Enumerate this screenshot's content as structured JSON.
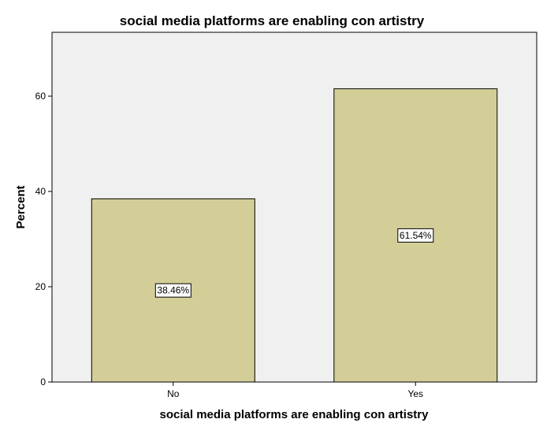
{
  "colors": {
    "plot_background": "#f0f0f0",
    "bar_fill": "#d3ce97",
    "bar_stroke": "#000000",
    "axis": "#000000"
  },
  "chart_data": {
    "type": "bar",
    "title": "social media platforms are enabling con artistry",
    "xlabel": "social media platforms are enabling con artistry",
    "ylabel": "Percent",
    "categories": [
      "No",
      "Yes"
    ],
    "values": [
      38.46,
      61.54
    ],
    "data_labels": [
      "38.46%",
      "61.54%"
    ],
    "ylim": [
      0,
      73.4
    ],
    "yticks": [
      0,
      20,
      40,
      60
    ],
    "ytick_labels": [
      "0",
      "20",
      "40",
      "60"
    ],
    "grid": false,
    "legend": "none"
  }
}
